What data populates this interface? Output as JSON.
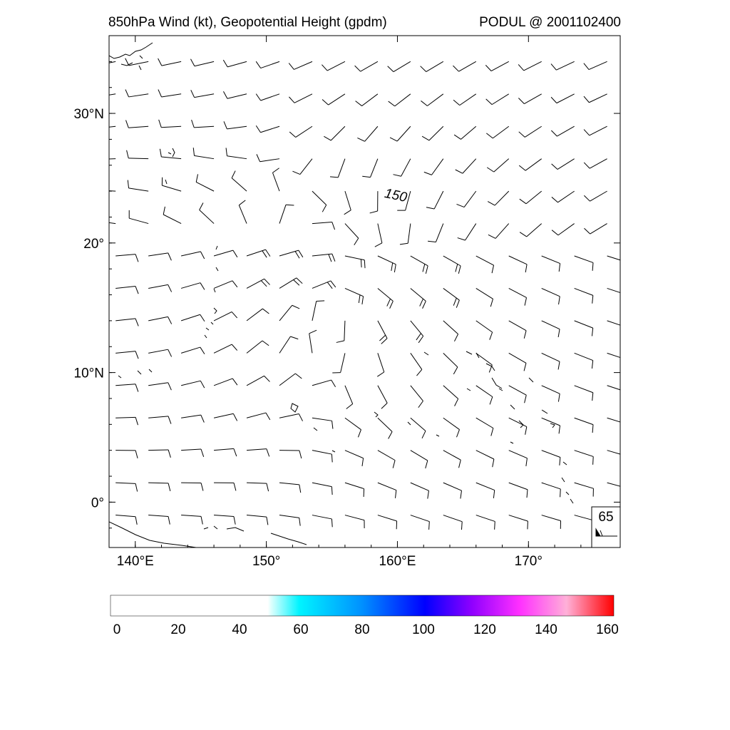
{
  "title_left": "850hPa Wind (kt), Geopotential Height (gpdm)",
  "title_right": "PODUL @ 2001102400",
  "map": {
    "lon_range": [
      138,
      177
    ],
    "lat_range": [
      -3.5,
      36
    ],
    "lon_ticks": [
      {
        "value": 140,
        "label": "140°E"
      },
      {
        "value": 150,
        "label": "150°"
      },
      {
        "value": 160,
        "label": "160°E"
      },
      {
        "value": 170,
        "label": "170°"
      }
    ],
    "lat_ticks": [
      {
        "value": 30,
        "label": "30°N"
      },
      {
        "value": 20,
        "label": "20°"
      },
      {
        "value": 10,
        "label": "10°N"
      },
      {
        "value": 0,
        "label": "0°"
      }
    ],
    "contour_label": "150",
    "contour_color": "#000000",
    "wind_barb_color": "#000000",
    "reference_box": {
      "label": "65"
    }
  },
  "colorbar": {
    "min": 0,
    "max": 160,
    "labels": [
      "0",
      "20",
      "40",
      "60",
      "80",
      "100",
      "120",
      "140",
      "160"
    ],
    "stops": [
      {
        "value": 0,
        "color": "#ffffff"
      },
      {
        "value": 50,
        "color": "#ffffff"
      },
      {
        "value": 51,
        "color": "#e0fffd"
      },
      {
        "value": 60,
        "color": "#00f4ff"
      },
      {
        "value": 80,
        "color": "#0090ff"
      },
      {
        "value": 100,
        "color": "#0000ff"
      },
      {
        "value": 115,
        "color": "#9000ff"
      },
      {
        "value": 130,
        "color": "#ff30ff"
      },
      {
        "value": 145,
        "color": "#ffb0d8"
      },
      {
        "value": 160,
        "color": "#ff0000"
      }
    ]
  }
}
